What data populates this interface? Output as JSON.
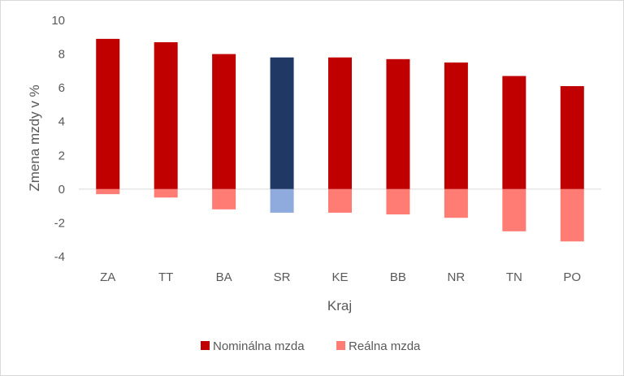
{
  "chart_data": {
    "type": "bar",
    "categories": [
      "ZA",
      "TT",
      "BA",
      "SR",
      "KE",
      "BB",
      "NR",
      "TN",
      "PO"
    ],
    "series": [
      {
        "name": "Nominálna mzda",
        "values": [
          8.9,
          8.7,
          8.0,
          7.8,
          7.8,
          7.7,
          7.5,
          6.7,
          6.1
        ]
      },
      {
        "name": "Reálna mzda",
        "values": [
          -0.3,
          -0.5,
          -1.2,
          -1.4,
          -1.4,
          -1.5,
          -1.7,
          -2.5,
          -3.1
        ]
      }
    ],
    "highlight_category": "SR",
    "colors": {
      "nominal": "#c00000",
      "real": "#ff7c74",
      "nominal_highlight": "#1f3864",
      "real_highlight": "#8faadc"
    },
    "xlabel": "Kraj",
    "ylabel": "Zmena mzdy v %",
    "ylim": [
      -4,
      10
    ],
    "yticks": [
      -4,
      -2,
      0,
      2,
      4,
      6,
      8,
      10
    ],
    "grid": false,
    "legend_position": "bottom"
  }
}
